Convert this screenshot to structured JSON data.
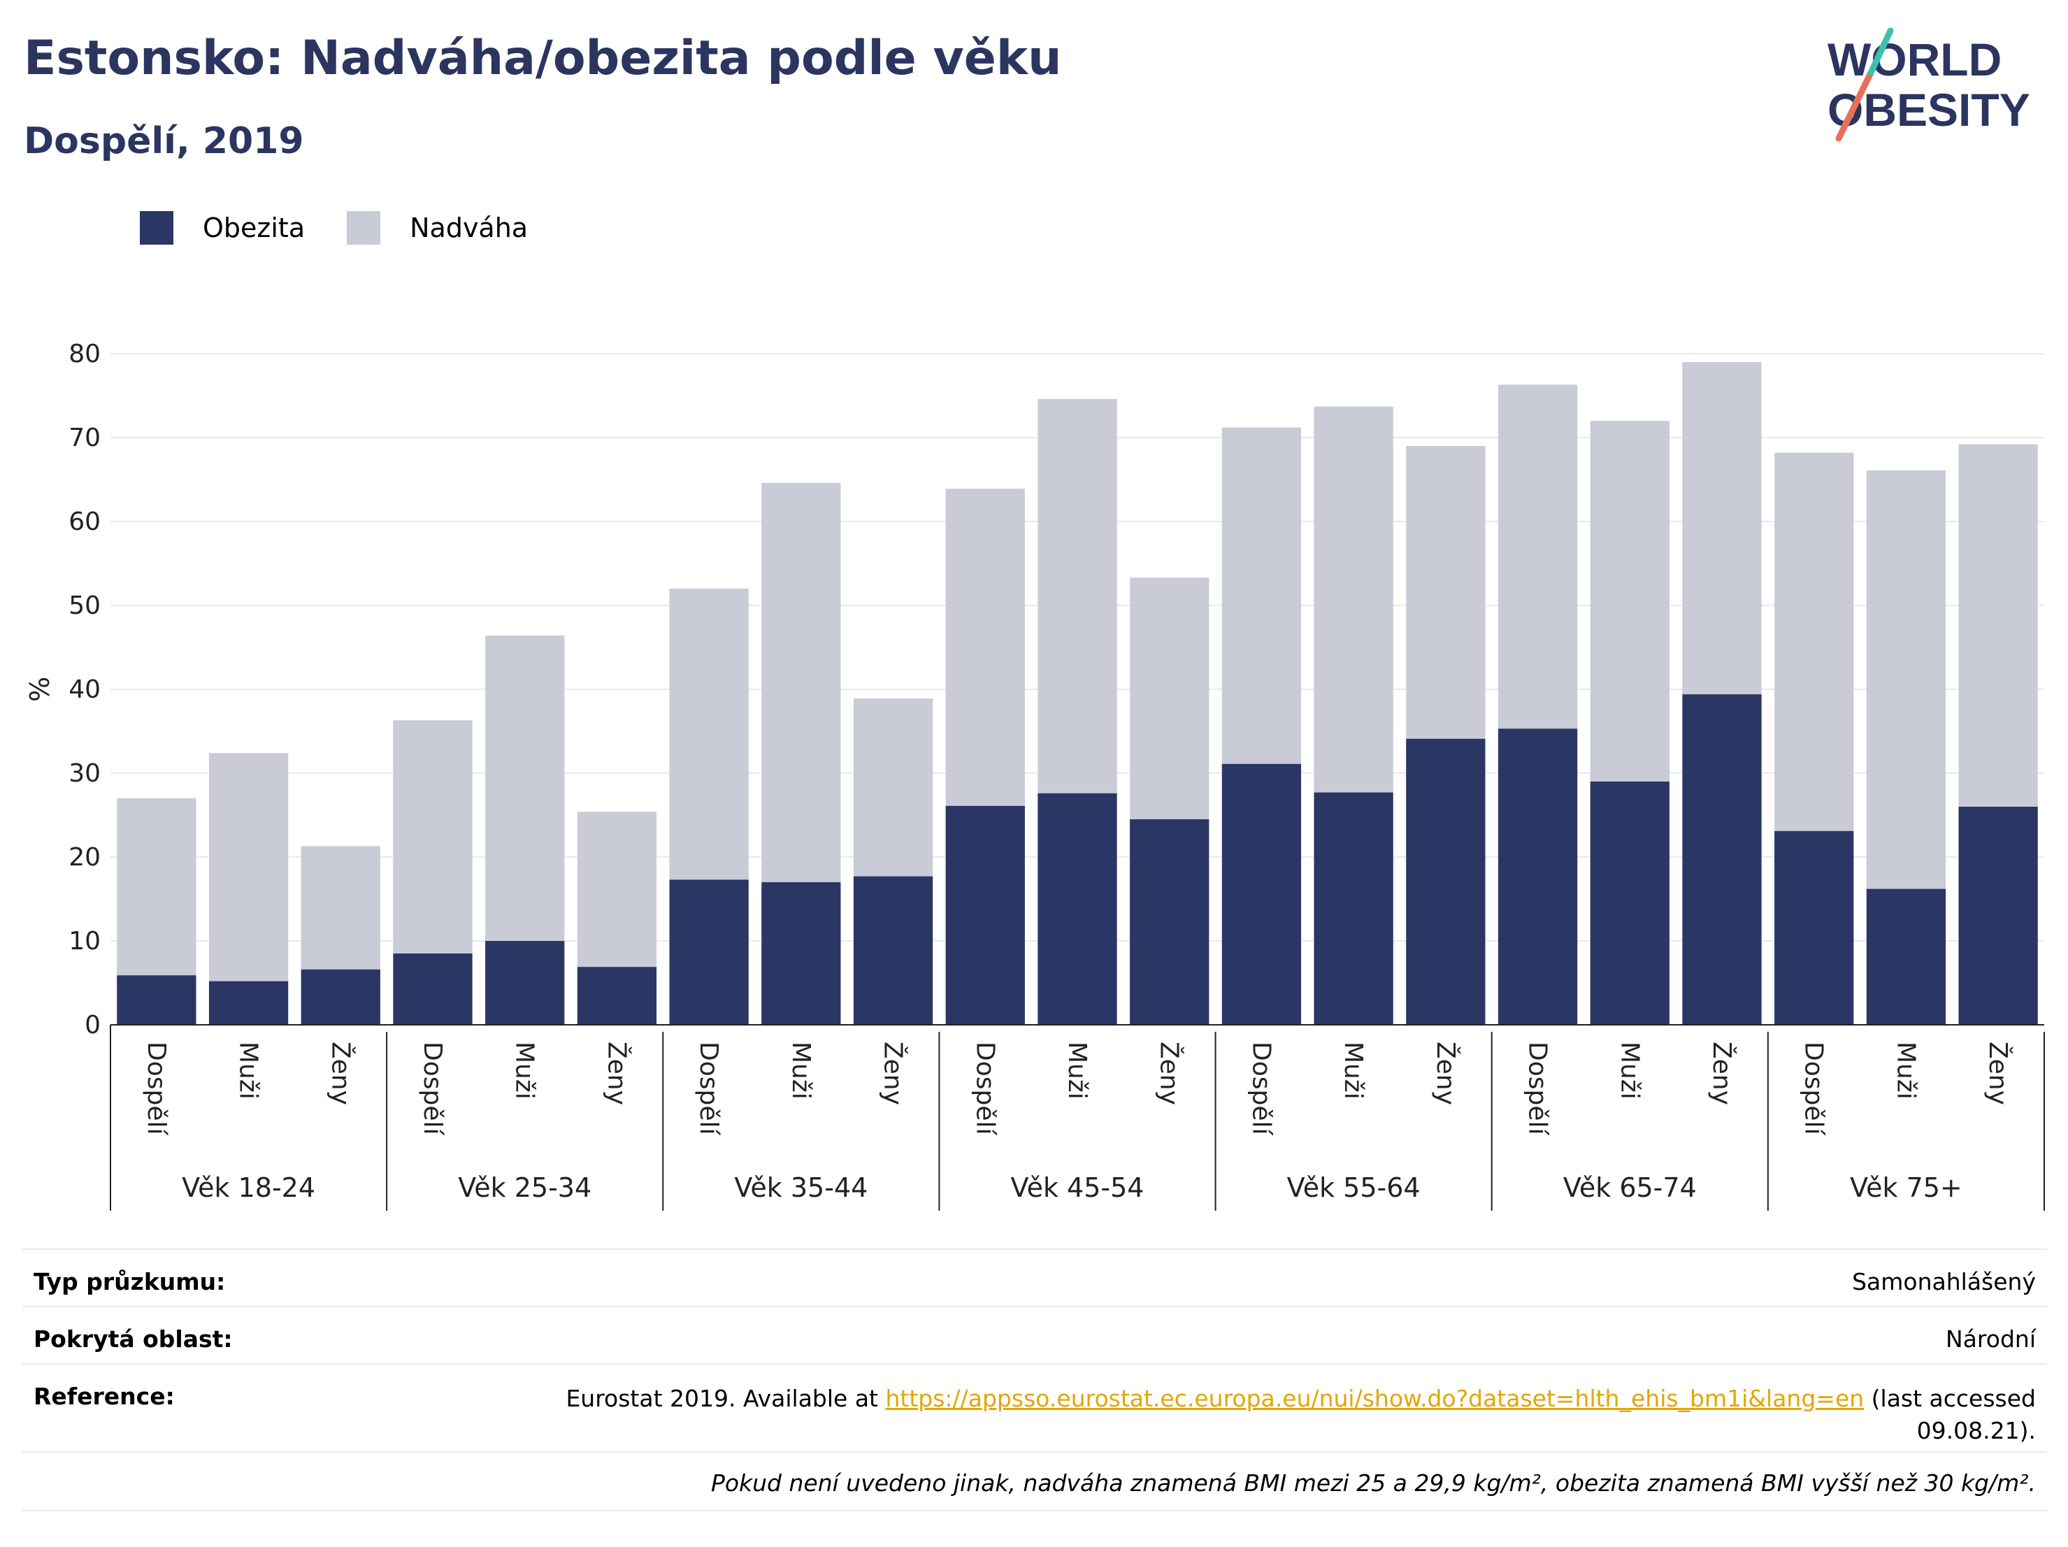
{
  "header": {
    "title": "Estonsko: Nadváha/obezita podle věku",
    "subtitle": "Dospělí, 2019"
  },
  "logo": {
    "line1": "WORLD",
    "line2": "OBESITY"
  },
  "colors": {
    "obesity": "#2a3663",
    "overweight": "#c9cbd6",
    "title": "#2b3560",
    "link": "#e3a600"
  },
  "chart_data": {
    "type": "bar",
    "stacked": true,
    "ylabel": "%",
    "ylim": [
      0,
      80
    ],
    "yticks": [
      0,
      10,
      20,
      30,
      40,
      50,
      60,
      70,
      80
    ],
    "grid": true,
    "legend": {
      "position": "top-left",
      "entries": [
        "Obezita",
        "Nadváha"
      ]
    },
    "groups": [
      "Věk 18-24",
      "Věk 25-34",
      "Věk 35-44",
      "Věk 45-54",
      "Věk 55-64",
      "Věk 65-74",
      "Věk 75+"
    ],
    "subcategories": [
      "Dospělí",
      "Muži",
      "Ženy"
    ],
    "series": [
      {
        "name": "Obezita",
        "values": [
          5.9,
          5.2,
          6.6,
          8.5,
          10.0,
          6.9,
          17.3,
          17.0,
          17.7,
          26.1,
          27.6,
          24.5,
          31.1,
          27.7,
          34.1,
          35.3,
          29.0,
          39.4,
          23.1,
          16.2,
          26.0
        ]
      },
      {
        "name": "Nadváha",
        "values": [
          21.1,
          27.2,
          14.7,
          27.8,
          36.4,
          18.5,
          34.7,
          47.6,
          21.2,
          37.8,
          47.0,
          28.8,
          40.1,
          46.0,
          34.9,
          41.0,
          43.0,
          39.6,
          45.1,
          49.9,
          43.2
        ]
      }
    ]
  },
  "meta": {
    "survey_type_label": "Typ průzkumu:",
    "survey_type_value": "Samonahlášený",
    "coverage_label": "Pokrytá oblast:",
    "coverage_value": "Národní",
    "reference_label": "Reference:",
    "reference_prefix": "Eurostat 2019. Available at ",
    "reference_link": "https://appsso.eurostat.ec.europa.eu/nui/show.do?dataset=hlth_ehis_bm1i&lang=en",
    "reference_suffix1": " (last accessed",
    "reference_suffix2": "09.08.21).",
    "note": "Pokud není uvedeno jinak, nadváha znamená BMI mezi 25 a 29,9 kg/m², obezita znamená BMI vyšší než 30 kg/m²."
  }
}
